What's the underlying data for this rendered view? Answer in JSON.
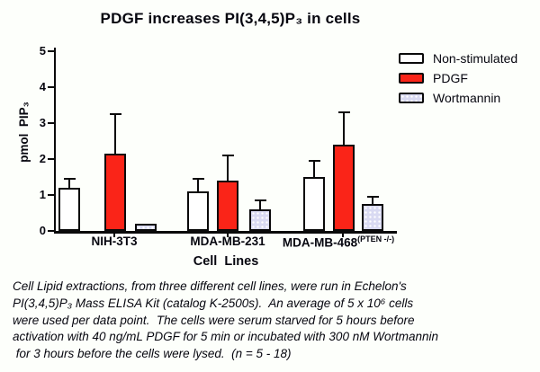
{
  "chart_data": {
    "type": "bar",
    "title": "PDGF increases PI(3,4,5)P₃ in cells",
    "xlabel": "Cell  Lines",
    "ylabel": "pmol  PIP₃",
    "ylim": [
      0,
      5
    ],
    "yticks": [
      0,
      1,
      2,
      3,
      4,
      5
    ],
    "grid": false,
    "legend_position": "top-right",
    "categories": [
      {
        "label": "NIH-3T3",
        "sup": ""
      },
      {
        "label": "MDA-MB-231",
        "sup": ""
      },
      {
        "label": "MDA-MB-468",
        "sup": "(PTEN -/-)"
      }
    ],
    "series": [
      {
        "name": "Non-stimulated",
        "color": "#FFFFFF",
        "pattern": "solid",
        "values": [
          1.2,
          1.1,
          1.5
        ],
        "errors_plus": [
          0.25,
          0.35,
          0.45
        ]
      },
      {
        "name": "PDGF",
        "color": "#FA2418",
        "pattern": "solid",
        "values": [
          2.15,
          1.4,
          2.4
        ],
        "errors_plus": [
          1.1,
          0.7,
          0.9
        ]
      },
      {
        "name": "Wortmannin",
        "color": "#D9DAF2",
        "pattern": "dots",
        "values": [
          0.2,
          0.6,
          0.75
        ],
        "errors_plus": [
          0,
          0.25,
          0.2
        ]
      }
    ]
  },
  "caption": {
    "lines": [
      "Cell Lipid extractions, from three different cell lines, were run in Echelon's",
      "PI(3,4,5)P₃ Mass ELISA Kit (catalog K-2500s).  An average of 5 x 10⁶ cells",
      "were used per data point.  The cells were serum starved for 5 hours before",
      "activation with 40 ng/mL PDGF for 5 min or incubated with 300 nM Wortmannin",
      " for 3 hours before the cells were lysed.  (n = 5 - 18)"
    ]
  }
}
